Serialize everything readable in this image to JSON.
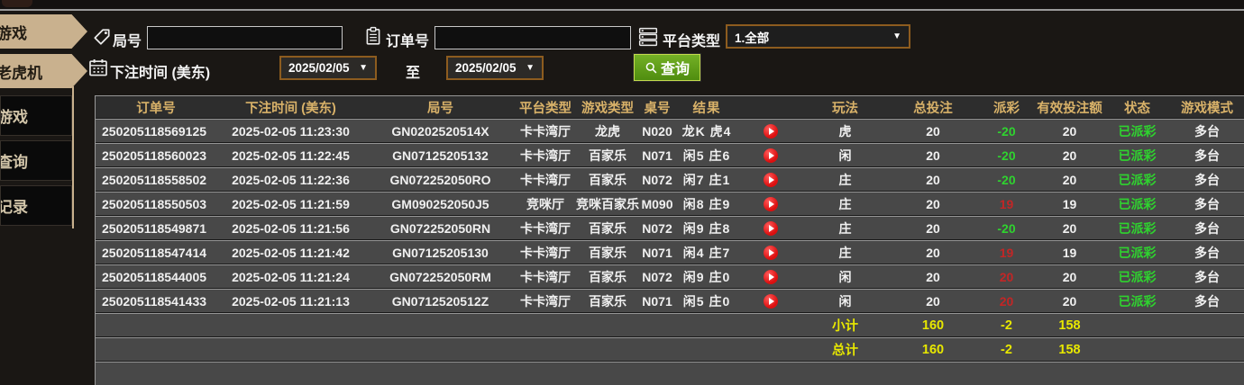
{
  "sidebar": {
    "items": [
      {
        "label": "游戏",
        "active": true
      },
      {
        "label": "老虎机",
        "active": true
      },
      {
        "label": "游戏",
        "active": false
      },
      {
        "label": "查询",
        "active": false
      },
      {
        "label": "记录",
        "active": false
      }
    ]
  },
  "filters": {
    "round": {
      "label": "局号",
      "value": "",
      "icon": "tag-icon"
    },
    "order": {
      "label": "订单号",
      "value": "",
      "icon": "clipboard-icon"
    },
    "platform": {
      "label": "平台类型",
      "value": "1.全部",
      "icon": "server-icon"
    },
    "bet_time": {
      "label": "下注时间 (美东)",
      "icon": "calendar-icon",
      "from": "2025/02/05",
      "to_label": "至",
      "to": "2025/02/05"
    },
    "search": {
      "label": "查询",
      "icon": "search-icon"
    }
  },
  "table": {
    "headers": [
      "订单号",
      "下注时间 (美东)",
      "局号",
      "平台类型",
      "游戏类型",
      "桌号",
      "结果",
      "",
      "玩法",
      "总投注",
      "派彩",
      "有效投注额",
      "状态",
      "游戏模式"
    ],
    "rows": [
      {
        "order": "250205118569125",
        "time": "2025-02-05 11:23:30",
        "round": "GN0202520514X",
        "platform": "卡卡湾厅",
        "game": "龙虎",
        "table_no": "N020",
        "result": "龙K 虎4",
        "side": "虎",
        "total_bet": "20",
        "payout": "-20",
        "payout_sign": "neg",
        "valid_bet": "20",
        "status": "已派彩",
        "mode": "多台"
      },
      {
        "order": "250205118560023",
        "time": "2025-02-05 11:22:45",
        "round": "GN07125205132",
        "platform": "卡卡湾厅",
        "game": "百家乐",
        "table_no": "N071",
        "result": "闲5 庄6",
        "side": "闲",
        "total_bet": "20",
        "payout": "-20",
        "payout_sign": "neg",
        "valid_bet": "20",
        "status": "已派彩",
        "mode": "多台"
      },
      {
        "order": "250205118558502",
        "time": "2025-02-05 11:22:36",
        "round": "GN072252050RO",
        "platform": "卡卡湾厅",
        "game": "百家乐",
        "table_no": "N072",
        "result": "闲7 庄1",
        "side": "庄",
        "total_bet": "20",
        "payout": "-20",
        "payout_sign": "neg",
        "valid_bet": "20",
        "status": "已派彩",
        "mode": "多台"
      },
      {
        "order": "250205118550503",
        "time": "2025-02-05 11:21:59",
        "round": "GM090252050J5",
        "platform": "竞咪厅",
        "game": "竞咪百家乐",
        "table_no": "M090",
        "result": "闲8 庄9",
        "side": "庄",
        "total_bet": "20",
        "payout": "19",
        "payout_sign": "pos",
        "valid_bet": "19",
        "status": "已派彩",
        "mode": "多台"
      },
      {
        "order": "250205118549871",
        "time": "2025-02-05 11:21:56",
        "round": "GN072252050RN",
        "platform": "卡卡湾厅",
        "game": "百家乐",
        "table_no": "N072",
        "result": "闲9 庄8",
        "side": "庄",
        "total_bet": "20",
        "payout": "-20",
        "payout_sign": "neg",
        "valid_bet": "20",
        "status": "已派彩",
        "mode": "多台"
      },
      {
        "order": "250205118547414",
        "time": "2025-02-05 11:21:42",
        "round": "GN07125205130",
        "platform": "卡卡湾厅",
        "game": "百家乐",
        "table_no": "N071",
        "result": "闲4 庄7",
        "side": "庄",
        "total_bet": "20",
        "payout": "19",
        "payout_sign": "pos",
        "valid_bet": "19",
        "status": "已派彩",
        "mode": "多台"
      },
      {
        "order": "250205118544005",
        "time": "2025-02-05 11:21:24",
        "round": "GN072252050RM",
        "platform": "卡卡湾厅",
        "game": "百家乐",
        "table_no": "N072",
        "result": "闲9 庄0",
        "side": "闲",
        "total_bet": "20",
        "payout": "20",
        "payout_sign": "pos",
        "valid_bet": "20",
        "status": "已派彩",
        "mode": "多台"
      },
      {
        "order": "250205118541433",
        "time": "2025-02-05 11:21:13",
        "round": "GN0712520512Z",
        "platform": "卡卡湾厅",
        "game": "百家乐",
        "table_no": "N071",
        "result": "闲5 庄0",
        "side": "闲",
        "total_bet": "20",
        "payout": "20",
        "payout_sign": "pos",
        "valid_bet": "20",
        "status": "已派彩",
        "mode": "多台"
      }
    ],
    "subtotal": {
      "label": "小计",
      "total_bet": "160",
      "payout": "-2",
      "valid_bet": "158"
    },
    "total": {
      "label": "总计",
      "total_bet": "160",
      "payout": "-2",
      "valid_bet": "158"
    }
  },
  "colors": {
    "header_gold": "#d9b269",
    "win_red": "#c22626",
    "lose_green": "#2fd32f",
    "total_yellow": "#e8e800",
    "status_green": "#2fd32f",
    "sidebar_tan": "#c9b18e",
    "button_green": "#5a9c14",
    "select_border": "#8d5c1f",
    "row_bg": "#484848"
  }
}
